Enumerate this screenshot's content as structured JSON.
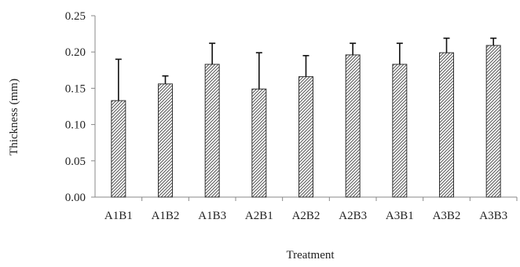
{
  "chart_data": {
    "type": "bar",
    "title": "",
    "xlabel": "Treatment",
    "ylabel": "Thickness (mm)",
    "categories": [
      "A1B1",
      "A1B2",
      "A1B3",
      "A2B1",
      "A2B2",
      "A2B3",
      "A3B1",
      "A3B2",
      "A3B3"
    ],
    "values": [
      0.133,
      0.156,
      0.183,
      0.149,
      0.166,
      0.196,
      0.183,
      0.199,
      0.209
    ],
    "error_upper": [
      0.19,
      0.167,
      0.212,
      0.199,
      0.195,
      0.212,
      0.212,
      0.219,
      0.219
    ],
    "ylim": [
      0,
      0.25
    ],
    "yticks": [
      "0.00",
      "0.05",
      "0.10",
      "0.15",
      "0.20",
      "0.25"
    ],
    "grid": false,
    "legend": "none",
    "bar_fill": "hatched",
    "colors": {
      "bar_stroke": "#333333",
      "hatch": "#555555",
      "axis": "#888888",
      "error_bar": "#111111"
    }
  }
}
